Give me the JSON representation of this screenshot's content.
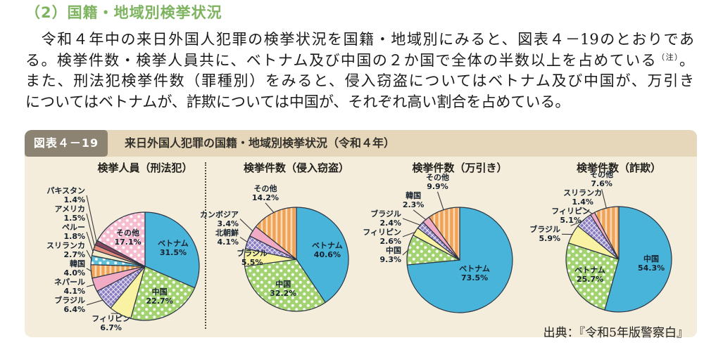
{
  "heading": {
    "text": "（2）国籍・地域別検挙状況"
  },
  "paragraph": {
    "line1": "　令和４年中の来日外国人犯罪の検挙状況を国籍・地域別にみると、図表４－19のとおりであ",
    "line2_main": "る。検挙件数・検挙人員共に、ベトナム及び中国の２か国で全体の半数以上を占めている",
    "line2_note": "（注）",
    "line2_end": "。",
    "line3": "また、刑法犯検挙件数（罪種別）をみると、侵入窃盗についてはベトナム及び中国が、万引き",
    "line4": "についてはベトナムが、詐欺については中国が、それぞれ高い割合を占めている。"
  },
  "figure": {
    "badge": "図表４－19",
    "title": "来日外国人犯罪の国籍・地域別検挙状況（令和４年）",
    "source": "出典：『令和5年版警察白』"
  },
  "colors": {
    "heading_green": "#7eb360",
    "figure_bar_bg": "#e6d7ba",
    "figure_badge_bg": "#8d8372",
    "figure_body_bg": "#f4eddc",
    "blue": "#49b4d9",
    "green": "#a3d271",
    "yellow": "#f8f2a2",
    "purple": "#8a7cc2",
    "pink": "#f2abc4",
    "orange": "#f0a355",
    "cyan": "#5fc0d8",
    "cream": "#f3ecca",
    "salmon": "#e58b7a",
    "maroon": "#84465f",
    "pink_light": "#f6bdd0"
  },
  "chart_data": [
    {
      "type": "pie",
      "title": "検挙人員（刑法犯）",
      "slices": [
        {
          "label": "ベトナム",
          "value": 31.5,
          "pct": "31.5%",
          "style": "blue",
          "label_inside": true
        },
        {
          "label": "中国",
          "value": 22.7,
          "pct": "22.7%",
          "style": "green:dots",
          "label_inside": true
        },
        {
          "label": "フィリピン",
          "value": 6.7,
          "pct": "6.7%",
          "style": "yellow",
          "label_inside": false
        },
        {
          "label": "ブラジル",
          "value": 6.4,
          "pct": "6.4%",
          "style": "purple:lattice",
          "label_inside": false
        },
        {
          "label": "ネパール",
          "value": 4.1,
          "pct": "4.1%",
          "style": "pink",
          "label_inside": false
        },
        {
          "label": "韓国",
          "value": 4.0,
          "pct": "4.0%",
          "style": "orange:stripes",
          "label_inside": false
        },
        {
          "label": "スリランカ",
          "value": 2.7,
          "pct": "2.7%",
          "style": "cyan:dots",
          "label_inside": false
        },
        {
          "label": "ペルー",
          "value": 1.8,
          "pct": "1.8%",
          "style": "cream",
          "label_inside": false
        },
        {
          "label": "アメリカ",
          "value": 1.5,
          "pct": "1.5%",
          "style": "salmon",
          "label_inside": false
        },
        {
          "label": "パキスタン",
          "value": 1.4,
          "pct": "1.4%",
          "style": "maroon",
          "label_inside": false
        },
        {
          "label": "その他",
          "value": 17.1,
          "pct": "17.1%",
          "style": "pink_light:dots",
          "label_inside": true
        }
      ]
    },
    {
      "type": "pie",
      "title": "検挙件数（侵入窃盗）",
      "slices": [
        {
          "label": "ベトナム",
          "value": 40.6,
          "pct": "40.6%",
          "style": "blue",
          "label_inside": true
        },
        {
          "label": "中国",
          "value": 32.2,
          "pct": "32.2%",
          "style": "green:dots",
          "label_inside": true
        },
        {
          "label": "ブラジル",
          "value": 5.5,
          "pct": "5.5%",
          "style": "yellow",
          "label_inside": true
        },
        {
          "label": "北朝鮮",
          "value": 4.1,
          "pct": "4.1%",
          "style": "purple:lattice",
          "label_inside": false
        },
        {
          "label": "カンボジア",
          "value": 3.4,
          "pct": "3.4%",
          "style": "pink",
          "label_inside": false
        },
        {
          "label": "その他",
          "value": 14.2,
          "pct": "14.2%",
          "style": "orange:stripes",
          "label_inside": false
        }
      ]
    },
    {
      "type": "pie",
      "title": "検挙件数（万引き）",
      "slices": [
        {
          "label": "ベトナム",
          "value": 73.5,
          "pct": "73.5%",
          "style": "blue",
          "label_inside": true
        },
        {
          "label": "中国",
          "value": 9.3,
          "pct": "9.3%",
          "style": "green:dots",
          "label_inside": false
        },
        {
          "label": "フィリピン",
          "value": 2.6,
          "pct": "2.6%",
          "style": "yellow",
          "label_inside": false
        },
        {
          "label": "ブラジル",
          "value": 2.4,
          "pct": "2.4%",
          "style": "purple:lattice",
          "label_inside": false
        },
        {
          "label": "韓国",
          "value": 2.3,
          "pct": "2.3%",
          "style": "pink",
          "label_inside": false
        },
        {
          "label": "その他",
          "value": 9.9,
          "pct": "9.9%",
          "style": "orange:stripes",
          "label_inside": false
        }
      ]
    },
    {
      "type": "pie",
      "title": "検挙件数（詐欺）",
      "slices": [
        {
          "label": "中国",
          "value": 54.3,
          "pct": "54.3%",
          "style": "blue",
          "label_inside": true
        },
        {
          "label": "ベトナム",
          "value": 25.7,
          "pct": "25.7%",
          "style": "green:dots",
          "label_inside": true
        },
        {
          "label": "ブラジル",
          "value": 5.9,
          "pct": "5.9%",
          "style": "yellow",
          "label_inside": false
        },
        {
          "label": "フィリピン",
          "value": 5.1,
          "pct": "5.1%",
          "style": "purple:lattice",
          "label_inside": false
        },
        {
          "label": "スリランカ",
          "value": 1.4,
          "pct": "1.4%",
          "style": "pink",
          "label_inside": false
        },
        {
          "label": "その他",
          "value": 7.6,
          "pct": "7.6%",
          "style": "orange:stripes",
          "label_inside": false
        }
      ]
    }
  ]
}
